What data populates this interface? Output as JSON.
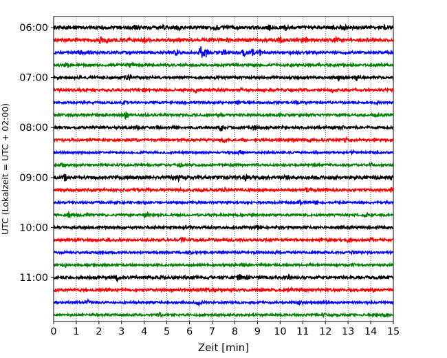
{
  "chart_data": {
    "type": "line",
    "title": "",
    "xlabel": "Zeit  [min]",
    "ylabel": "UTC (Lokalzeit = UTC + 02:00)",
    "xlim": [
      0,
      15
    ],
    "x_ticks": [
      "0",
      "1",
      "2",
      "3",
      "4",
      "5",
      "6",
      "7",
      "8",
      "9",
      "10",
      "11",
      "12",
      "13",
      "14",
      "15"
    ],
    "grid": "vertical dotted lines at each minute",
    "legend": "none",
    "series_colors": [
      "#000000",
      "#ff0000",
      "#0000ff",
      "#008000"
    ],
    "trace_interval_min": 15,
    "hour_labels": [
      "06:00",
      "07:00",
      "08:00",
      "09:00",
      "10:00",
      "11:00"
    ],
    "rows": [
      {
        "start": "06:00",
        "color": "#000000",
        "amplitude": 0.45,
        "bursts": [
          [
            3.6,
            0.55
          ],
          [
            4.9,
            0.6
          ],
          [
            5.5,
            0.6
          ],
          [
            7.2,
            0.55
          ],
          [
            9.5,
            0.6
          ],
          [
            10.2,
            0.7
          ],
          [
            12.9,
            0.55
          ],
          [
            14.6,
            0.6
          ]
        ]
      },
      {
        "start": "06:15",
        "color": "#ff0000",
        "amplitude": 0.45,
        "bursts": [
          [
            2.1,
            0.7
          ],
          [
            2.3,
            0.6
          ],
          [
            4.0,
            0.5
          ],
          [
            7.7,
            0.5
          ],
          [
            10.0,
            0.5
          ],
          [
            11.1,
            0.7
          ],
          [
            12.5,
            0.5
          ]
        ]
      },
      {
        "start": "06:30",
        "color": "#0000ff",
        "amplitude": 0.4,
        "bursts": [
          [
            1.2,
            0.5
          ],
          [
            5.4,
            0.6
          ],
          [
            6.5,
            1.6
          ],
          [
            6.7,
            1.4
          ],
          [
            7.5,
            0.6
          ],
          [
            8.4,
            0.7
          ],
          [
            8.8,
            0.9
          ],
          [
            9.1,
            0.6
          ]
        ]
      },
      {
        "start": "06:45",
        "color": "#008000",
        "amplitude": 0.35,
        "bursts": [
          [
            0.6,
            0.5
          ],
          [
            3.4,
            0.6
          ],
          [
            13.2,
            0.4
          ]
        ]
      },
      {
        "start": "07:00",
        "color": "#000000",
        "amplitude": 0.4,
        "bursts": [
          [
            3.3,
            0.5
          ],
          [
            12.6,
            0.5
          ],
          [
            13.4,
            0.7
          ]
        ]
      },
      {
        "start": "07:15",
        "color": "#ff0000",
        "amplitude": 0.38,
        "bursts": [
          [
            4.0,
            0.5
          ],
          [
            6.3,
            0.5
          ],
          [
            8.3,
            0.4
          ],
          [
            12.3,
            0.5
          ]
        ]
      },
      {
        "start": "07:30",
        "color": "#0000ff",
        "amplitude": 0.3,
        "bursts": [
          [
            3.1,
            0.4
          ],
          [
            8.1,
            0.4
          ],
          [
            10.7,
            0.4
          ],
          [
            14.3,
            0.4
          ]
        ]
      },
      {
        "start": "07:45",
        "color": "#008000",
        "amplitude": 0.35,
        "bursts": [
          [
            3.2,
            0.8
          ],
          [
            7.4,
            0.5
          ],
          [
            14.3,
            0.6
          ]
        ]
      },
      {
        "start": "08:00",
        "color": "#000000",
        "amplitude": 0.35,
        "bursts": [
          [
            3.7,
            0.5
          ],
          [
            7.4,
            0.8
          ],
          [
            8.9,
            0.5
          ],
          [
            12.7,
            0.4
          ]
        ]
      },
      {
        "start": "08:15",
        "color": "#ff0000",
        "amplitude": 0.35,
        "bursts": [
          [
            7.5,
            0.5
          ],
          [
            11.3,
            0.4
          ],
          [
            12.9,
            0.4
          ]
        ]
      },
      {
        "start": "08:30",
        "color": "#0000ff",
        "amplitude": 0.3,
        "bursts": [
          [
            8.3,
            0.6
          ],
          [
            13.2,
            0.4
          ]
        ]
      },
      {
        "start": "08:45",
        "color": "#008000",
        "amplitude": 0.32,
        "bursts": [
          [
            0.4,
            0.4
          ],
          [
            5.6,
            0.6
          ],
          [
            14.0,
            0.4
          ]
        ]
      },
      {
        "start": "09:00",
        "color": "#000000",
        "amplitude": 0.48,
        "bursts": [
          [
            0.5,
            0.7
          ],
          [
            5.5,
            0.8
          ],
          [
            8.5,
            0.6
          ],
          [
            10.3,
            0.5
          ]
        ]
      },
      {
        "start": "09:15",
        "color": "#ff0000",
        "amplitude": 0.38,
        "bursts": [
          [
            7.6,
            0.5
          ],
          [
            11.2,
            0.5
          ],
          [
            14.9,
            0.6
          ]
        ]
      },
      {
        "start": "09:30",
        "color": "#0000ff",
        "amplitude": 0.3,
        "bursts": [
          [
            10.9,
            0.6
          ],
          [
            11.6,
            0.8
          ]
        ]
      },
      {
        "start": "09:45",
        "color": "#008000",
        "amplitude": 0.32,
        "bursts": [
          [
            0.7,
            0.6
          ],
          [
            4.1,
            0.7
          ],
          [
            13.8,
            0.4
          ]
        ]
      },
      {
        "start": "10:00",
        "color": "#000000",
        "amplitude": 0.38,
        "bursts": [
          [
            1.3,
            0.5
          ],
          [
            9.0,
            0.5
          ],
          [
            12.7,
            0.4
          ]
        ]
      },
      {
        "start": "10:15",
        "color": "#ff0000",
        "amplitude": 0.36,
        "bursts": [
          [
            5.7,
            0.6
          ],
          [
            13.0,
            0.5
          ],
          [
            14.0,
            0.5
          ]
        ]
      },
      {
        "start": "10:30",
        "color": "#0000ff",
        "amplitude": 0.3,
        "bursts": [
          [
            6.0,
            0.5
          ],
          [
            9.9,
            0.4
          ],
          [
            13.2,
            0.4
          ]
        ]
      },
      {
        "start": "10:45",
        "color": "#008000",
        "amplitude": 0.3,
        "bursts": [
          [
            0.5,
            0.5
          ],
          [
            8.4,
            0.4
          ],
          [
            13.2,
            0.4
          ]
        ]
      },
      {
        "start": "11:00",
        "color": "#000000",
        "amplitude": 0.4,
        "bursts": [
          [
            2.8,
            0.6
          ],
          [
            8.2,
            0.6
          ],
          [
            8.5,
            0.6
          ],
          [
            10.4,
            0.5
          ]
        ]
      },
      {
        "start": "11:15",
        "color": "#ff0000",
        "amplitude": 0.38,
        "bursts": [
          [
            6.8,
            0.6
          ],
          [
            10.5,
            0.4
          ],
          [
            14.1,
            0.4
          ]
        ]
      },
      {
        "start": "11:30",
        "color": "#0000ff",
        "amplitude": 0.32,
        "bursts": [
          [
            1.5,
            0.5
          ],
          [
            6.4,
            0.7
          ],
          [
            10.9,
            0.5
          ]
        ]
      },
      {
        "start": "11:45",
        "color": "#008000",
        "amplitude": 0.32,
        "bursts": [
          [
            4.7,
            0.6
          ],
          [
            11.9,
            0.4
          ],
          [
            14.6,
            0.4
          ]
        ]
      }
    ]
  }
}
